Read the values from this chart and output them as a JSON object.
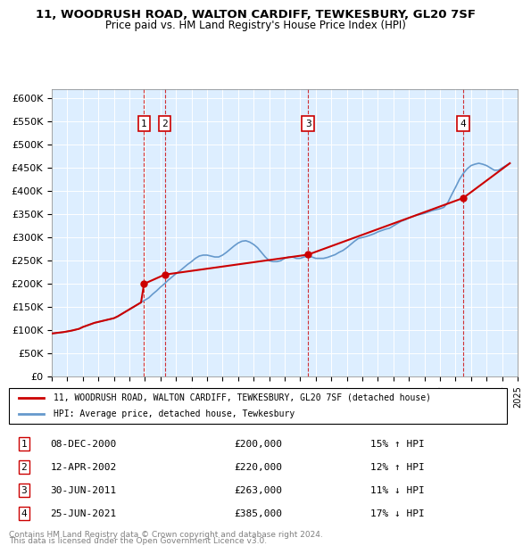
{
  "title": "11, WOODRUSH ROAD, WALTON CARDIFF, TEWKESBURY, GL20 7SF",
  "subtitle": "Price paid vs. HM Land Registry's House Price Index (HPI)",
  "legend_line1": "11, WOODRUSH ROAD, WALTON CARDIFF, TEWKESBURY, GL20 7SF (detached house)",
  "legend_line2": "HPI: Average price, detached house, Tewkesbury",
  "footer1": "Contains HM Land Registry data © Crown copyright and database right 2024.",
  "footer2": "This data is licensed under the Open Government Licence v3.0.",
  "sale_color": "#cc0000",
  "hpi_color": "#6699cc",
  "background_color": "#ddeeff",
  "ylim": [
    0,
    620000
  ],
  "yticks": [
    0,
    50000,
    100000,
    150000,
    200000,
    250000,
    300000,
    350000,
    400000,
    450000,
    500000,
    550000,
    600000
  ],
  "ytick_labels": [
    "£0",
    "£50K",
    "£100K",
    "£150K",
    "£200K",
    "£250K",
    "£300K",
    "£350K",
    "£400K",
    "£450K",
    "£500K",
    "£550K",
    "£600K"
  ],
  "transactions": [
    {
      "num": 1,
      "date": "2000-12-08",
      "price": 200000,
      "pct": "15%",
      "dir": "↑",
      "x_year": 2000.94
    },
    {
      "num": 2,
      "date": "2002-04-12",
      "price": 220000,
      "pct": "12%",
      "dir": "↑",
      "x_year": 2002.28
    },
    {
      "num": 3,
      "date": "2011-06-30",
      "price": 263000,
      "pct": "11%",
      "dir": "↓",
      "x_year": 2011.5
    },
    {
      "num": 4,
      "date": "2021-06-25",
      "price": 385000,
      "pct": "17%",
      "dir": "↓",
      "x_year": 2021.49
    }
  ],
  "hpi_years": [
    1995.0,
    1995.25,
    1995.5,
    1995.75,
    1996.0,
    1996.25,
    1996.5,
    1996.75,
    1997.0,
    1997.25,
    1997.5,
    1997.75,
    1998.0,
    1998.25,
    1998.5,
    1998.75,
    1999.0,
    1999.25,
    1999.5,
    1999.75,
    2000.0,
    2000.25,
    2000.5,
    2000.75,
    2001.0,
    2001.25,
    2001.5,
    2001.75,
    2002.0,
    2002.25,
    2002.5,
    2002.75,
    2003.0,
    2003.25,
    2003.5,
    2003.75,
    2004.0,
    2004.25,
    2004.5,
    2004.75,
    2005.0,
    2005.25,
    2005.5,
    2005.75,
    2006.0,
    2006.25,
    2006.5,
    2006.75,
    2007.0,
    2007.25,
    2007.5,
    2007.75,
    2008.0,
    2008.25,
    2008.5,
    2008.75,
    2009.0,
    2009.25,
    2009.5,
    2009.75,
    2010.0,
    2010.25,
    2010.5,
    2010.75,
    2011.0,
    2011.25,
    2011.5,
    2011.75,
    2012.0,
    2012.25,
    2012.5,
    2012.75,
    2013.0,
    2013.25,
    2013.5,
    2013.75,
    2014.0,
    2014.25,
    2014.5,
    2014.75,
    2015.0,
    2015.25,
    2015.5,
    2015.75,
    2016.0,
    2016.25,
    2016.5,
    2016.75,
    2017.0,
    2017.25,
    2017.5,
    2017.75,
    2018.0,
    2018.25,
    2018.5,
    2018.75,
    2019.0,
    2019.25,
    2019.5,
    2019.75,
    2020.0,
    2020.25,
    2020.5,
    2020.75,
    2021.0,
    2021.25,
    2021.5,
    2021.75,
    2022.0,
    2022.25,
    2022.5,
    2022.75,
    2023.0,
    2023.25,
    2023.5,
    2023.75,
    2024.0,
    2024.25,
    2024.5
  ],
  "hpi_values": [
    93000,
    94000,
    95000,
    96000,
    97500,
    99000,
    101000,
    103000,
    107000,
    110000,
    113000,
    116000,
    118000,
    120000,
    122000,
    124000,
    126000,
    130000,
    135000,
    140000,
    145000,
    150000,
    155000,
    160000,
    165000,
    170000,
    178000,
    185000,
    193000,
    200000,
    208000,
    215000,
    222000,
    228000,
    235000,
    242000,
    248000,
    255000,
    260000,
    262000,
    262000,
    260000,
    258000,
    258000,
    262000,
    268000,
    275000,
    282000,
    288000,
    292000,
    293000,
    290000,
    285000,
    278000,
    268000,
    258000,
    250000,
    248000,
    248000,
    250000,
    255000,
    258000,
    258000,
    255000,
    255000,
    258000,
    260000,
    258000,
    255000,
    255000,
    255000,
    257000,
    260000,
    263000,
    268000,
    272000,
    278000,
    285000,
    292000,
    298000,
    300000,
    302000,
    305000,
    308000,
    312000,
    315000,
    318000,
    320000,
    325000,
    330000,
    335000,
    338000,
    342000,
    345000,
    348000,
    350000,
    352000,
    355000,
    358000,
    360000,
    362000,
    365000,
    375000,
    392000,
    408000,
    425000,
    438000,
    448000,
    455000,
    458000,
    460000,
    458000,
    455000,
    450000,
    445000,
    445000,
    450000,
    455000,
    460000
  ],
  "sold_line_years": [
    1995.0,
    1995.25,
    1995.5,
    1995.75,
    1996.0,
    1996.25,
    1996.5,
    1996.75,
    1997.0,
    1997.25,
    1997.5,
    1997.75,
    1998.0,
    1998.25,
    1998.5,
    1998.75,
    1999.0,
    1999.25,
    1999.5,
    1999.75,
    2000.0,
    2000.25,
    2000.5,
    2000.75,
    2000.94,
    2002.28,
    2011.5,
    2021.49,
    2024.5
  ],
  "sold_line_values": [
    93000,
    94000,
    95000,
    96000,
    97500,
    99000,
    101000,
    103000,
    107000,
    110000,
    113000,
    116000,
    118000,
    120000,
    122000,
    124000,
    126000,
    130000,
    135000,
    140000,
    145000,
    150000,
    155000,
    160000,
    200000,
    220000,
    263000,
    385000,
    460000
  ],
  "xmin": 1995.0,
  "xmax": 2025.0
}
